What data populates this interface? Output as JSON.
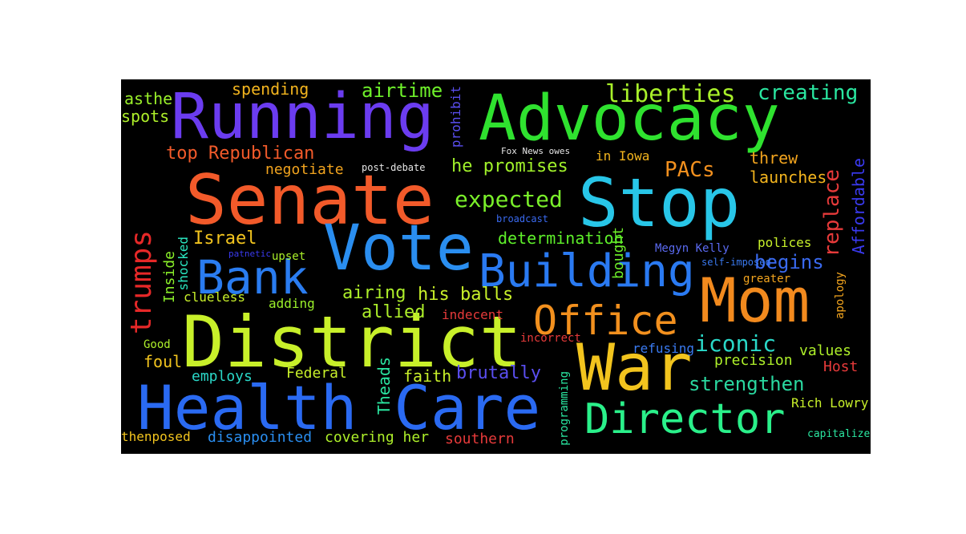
{
  "words": {
    "running": {
      "text": "Running",
      "color": "#6b3cf0"
    },
    "advocacy": {
      "text": "Advocacy",
      "color": "#2fe22f"
    },
    "senate": {
      "text": "Senate",
      "color": "#f25a2a"
    },
    "stop": {
      "text": "Stop",
      "color": "#28c6e8"
    },
    "vote": {
      "text": "Vote",
      "color": "#2a8ef0"
    },
    "bank": {
      "text": "Bank",
      "color": "#2a7cf0"
    },
    "building": {
      "text": "Building",
      "color": "#2a7af2"
    },
    "mom": {
      "text": "Mom",
      "color": "#f28a1e"
    },
    "office": {
      "text": "Office",
      "color": "#f2901e"
    },
    "district": {
      "text": "District",
      "color": "#c8f02a"
    },
    "war": {
      "text": "War",
      "color": "#f2c41e"
    },
    "health_care": {
      "text": "Health Care",
      "color": "#2a6af2"
    },
    "director": {
      "text": "Director",
      "color": "#2af08a"
    },
    "trumps": {
      "text": "trumps",
      "color": "#e62828"
    },
    "liberties": {
      "text": "liberties",
      "color": "#a8f02a"
    },
    "creating": {
      "text": "creating",
      "color": "#2ae6a0"
    },
    "airtime": {
      "text": "airtime",
      "color": "#6ef02a"
    },
    "spending": {
      "text": "spending",
      "color": "#f2b41e"
    },
    "asthe": {
      "text": "asthe",
      "color": "#9af02a"
    },
    "spots": {
      "text": "spots",
      "color": "#aef02a"
    },
    "top_republican": {
      "text": "top Republican",
      "color": "#f25a2a"
    },
    "negotiate": {
      "text": "negotiate",
      "color": "#f2a41e"
    },
    "expected": {
      "text": "expected",
      "color": "#7af02a"
    },
    "he_promises": {
      "text": "he promises",
      "color": "#a0f02a"
    },
    "pacs": {
      "text": "PACs",
      "color": "#f2901e"
    },
    "in_iowa": {
      "text": "in Iowa",
      "color": "#f2b41e"
    },
    "threw": {
      "text": "threw",
      "color": "#f2a41e"
    },
    "launches": {
      "text": "launches",
      "color": "#f2b41e"
    },
    "replace": {
      "text": "replace",
      "color": "#e63a3a"
    },
    "affordable": {
      "text": "Affordable",
      "color": "#3a3af0"
    },
    "prohibit": {
      "text": "prohibit",
      "color": "#5a4ef0"
    },
    "israel": {
      "text": "Israel",
      "color": "#f2c41e"
    },
    "determination": {
      "text": "determination",
      "color": "#5ef02a"
    },
    "bought": {
      "text": "bought",
      "color": "#6ef02a"
    },
    "polices": {
      "text": "polices",
      "color": "#c8f02a"
    },
    "begins": {
      "text": "begins",
      "color": "#3a6af0"
    },
    "megyn_kelly": {
      "text": "Megyn Kelly",
      "color": "#5a6af0"
    },
    "inside": {
      "text": "Inside",
      "color": "#8af02a"
    },
    "shocked": {
      "text": "shocked",
      "color": "#2ae6c0"
    },
    "upset": {
      "text": "upset",
      "color": "#aaf02a"
    },
    "clueless": {
      "text": "clueless",
      "color": "#c8f02a"
    },
    "adding": {
      "text": "adding",
      "color": "#9af02a"
    },
    "airing": {
      "text": "airing",
      "color": "#aef02a"
    },
    "his_balls": {
      "text": "his balls",
      "color": "#c8f02a"
    },
    "allied": {
      "text": "allied",
      "color": "#aef02a"
    },
    "indecent": {
      "text": "indecent",
      "color": "#e63a3a"
    },
    "iconic": {
      "text": "iconic",
      "color": "#2ad8c8"
    },
    "values": {
      "text": "values",
      "color": "#aef02a"
    },
    "precision": {
      "text": "precision",
      "color": "#aef02a"
    },
    "host": {
      "text": "Host",
      "color": "#e63a3a"
    },
    "good": {
      "text": "Good",
      "color": "#aef02a"
    },
    "foul": {
      "text": "foul",
      "color": "#f2c41e"
    },
    "employs": {
      "text": "employs",
      "color": "#2ad8c8"
    },
    "federal": {
      "text": "Federal",
      "color": "#c8f02a"
    },
    "theads": {
      "text": "Theads",
      "color": "#2ae6a0"
    },
    "faith": {
      "text": "faith",
      "color": "#c8f02a"
    },
    "brutally": {
      "text": "brutally",
      "color": "#5a4ef0"
    },
    "strengthen": {
      "text": "strengthen",
      "color": "#2ad8a0"
    },
    "refusing": {
      "text": "refusing",
      "color": "#3a7af0"
    },
    "incorrect": {
      "text": "incorrect",
      "color": "#e63a3a"
    },
    "rich_lowry": {
      "text": "Rich Lowry",
      "color": "#c8f02a"
    },
    "thenposed": {
      "text": "thenposed",
      "color": "#f2c41e"
    },
    "disappointed": {
      "text": "disappointed",
      "color": "#2a8ef0"
    },
    "covering_her": {
      "text": "covering her",
      "color": "#aef02a"
    },
    "southern": {
      "text": "southern",
      "color": "#e63a3a"
    },
    "capitalize": {
      "text": "capitalize",
      "color": "#2ae6a0"
    },
    "greater": {
      "text": "greater",
      "color": "#f2a41e"
    },
    "apology": {
      "text": "apology",
      "color": "#f2a41e"
    },
    "self_imposed": {
      "text": "self-imposed",
      "color": "#3a7af0"
    },
    "post_debate": {
      "text": "post-debate",
      "color": "#e6e6e6"
    },
    "broadcast": {
      "text": "broadcast",
      "color": "#3a6af0"
    },
    "fox_news_owes": {
      "text": "Fox News owes",
      "color": "#e6e6e6"
    },
    "patnetic": {
      "text": "patnetic",
      "color": "#3a3af0"
    },
    "programming": {
      "text": "programming",
      "color": "#2ae6a0"
    }
  }
}
